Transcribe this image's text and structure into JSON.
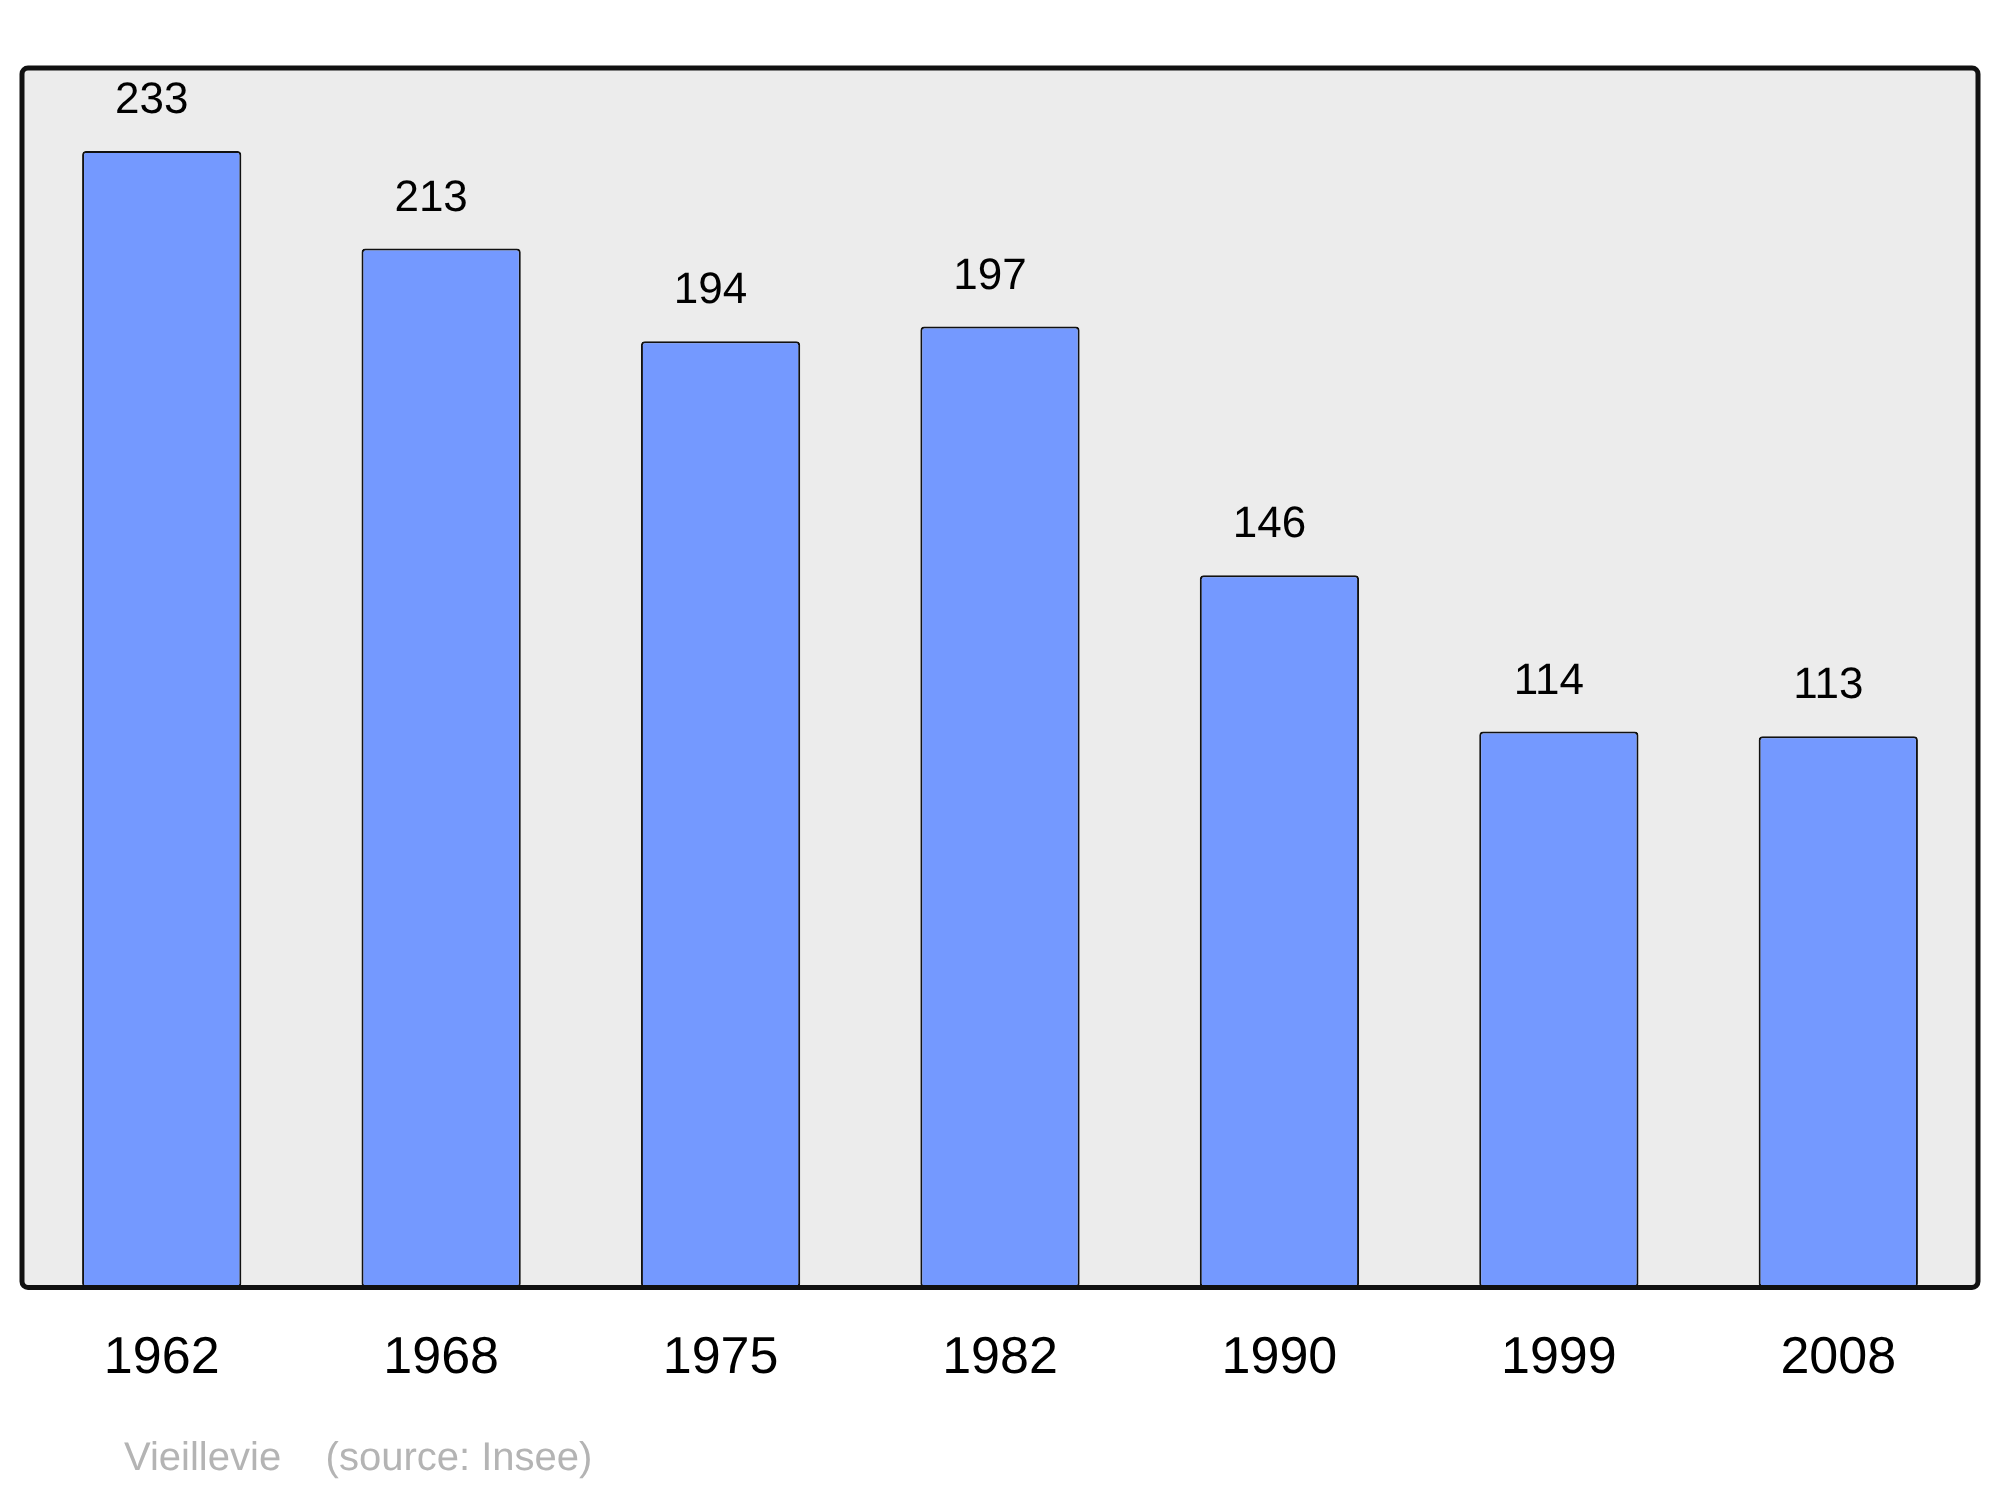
{
  "chart_data": {
    "type": "bar",
    "categories": [
      "1962",
      "1968",
      "1975",
      "1982",
      "1990",
      "1999",
      "2008"
    ],
    "values": [
      233,
      213,
      194,
      197,
      146,
      114,
      113
    ],
    "color": "#7499ff",
    "data_labels": true,
    "annotations": [
      "Vieillevie    (source: Insee)"
    ]
  }
}
